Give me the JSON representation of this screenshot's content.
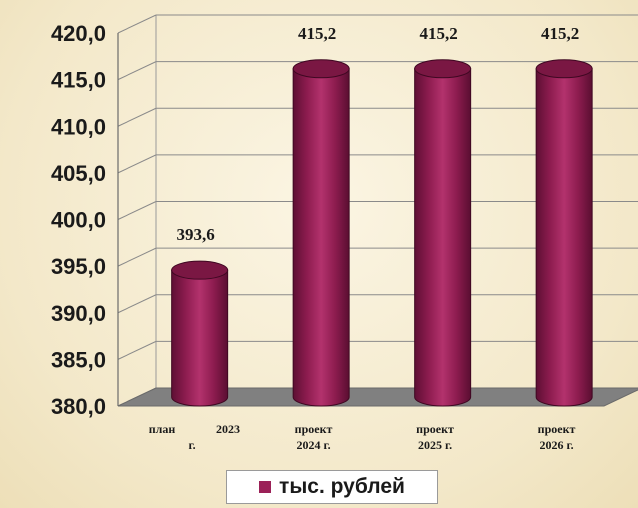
{
  "chart_data": {
    "type": "bar",
    "style": "3d-cylinder",
    "categories": [
      [
        "план",
        "2023",
        "г."
      ],
      [
        "проект",
        "2024 г."
      ],
      [
        "проект",
        "2025 г."
      ],
      [
        "проект",
        "2026 г."
      ]
    ],
    "series": [
      {
        "name": "тыс. рублей",
        "values": [
          393.6,
          415.2,
          415.2,
          415.2
        ],
        "value_labels": [
          "393,6",
          "415,2",
          "415,2",
          "415,2"
        ],
        "color": "#9b2158"
      }
    ],
    "ylim": [
      380,
      420
    ],
    "yticks": [
      "380,0",
      "385,0",
      "390,0",
      "395,0",
      "400,0",
      "405,0",
      "410,0",
      "415,0",
      "420,0"
    ],
    "grid": true,
    "legend_position": "bottom-center"
  }
}
